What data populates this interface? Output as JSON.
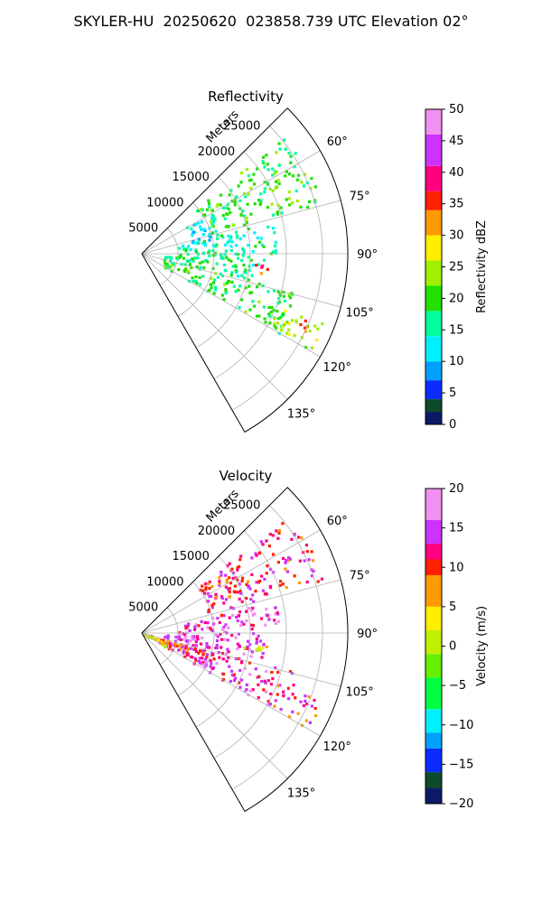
{
  "figure_title": "SKYLER-HU  20250620  023858.739 UTC Elevation 02°",
  "chart_data": [
    {
      "type": "heatmap",
      "projection": "polar-sector",
      "title": "Reflectivity",
      "range_label": "Meters",
      "range_ticks": [
        5000,
        10000,
        15000,
        20000,
        25000
      ],
      "range_tick_labels": [
        "5000",
        "10000",
        "15000",
        "20000",
        "25000"
      ],
      "range_max": 28500,
      "azimuth_range_deg": [
        45,
        150
      ],
      "azimuth_ticks": [
        60,
        75,
        90,
        105,
        120,
        135
      ],
      "azimuth_tick_labels": [
        "60°",
        "75°",
        "90°",
        "105°",
        "120°",
        "135°"
      ],
      "colorbar": {
        "label": "Reflectivity dBZ",
        "vmin": 0,
        "vmax": 50,
        "ticks": [
          0,
          5,
          10,
          15,
          20,
          25,
          30,
          35,
          40,
          45,
          50
        ],
        "tick_labels": [
          "0",
          "5",
          "10",
          "15",
          "20",
          "25",
          "30",
          "35",
          "40",
          "45",
          "50"
        ],
        "stops": [
          {
            "v": 0,
            "color": "#0b1a66"
          },
          {
            "v": 2,
            "color": "#0d4a2a"
          },
          {
            "v": 4,
            "color": "#0a2cff"
          },
          {
            "v": 7,
            "color": "#00a0ff"
          },
          {
            "v": 10,
            "color": "#00f0ff"
          },
          {
            "v": 14,
            "color": "#00ffa0"
          },
          {
            "v": 18,
            "color": "#22e000"
          },
          {
            "v": 22,
            "color": "#a0f000"
          },
          {
            "v": 26,
            "color": "#ffee00"
          },
          {
            "v": 30,
            "color": "#ff9a00"
          },
          {
            "v": 34,
            "color": "#ff2000"
          },
          {
            "v": 37,
            "color": "#ff0080"
          },
          {
            "v": 41,
            "color": "#cc33ff"
          },
          {
            "v": 46,
            "color": "#f090f0"
          },
          {
            "v": 50,
            "color": "#ffe6ff"
          }
        ]
      },
      "echo_regions": [
        {
          "az": [
            50,
            74
          ],
          "r": [
            9500,
            26000
          ],
          "value": 20
        },
        {
          "az": [
            76,
            90
          ],
          "r": [
            5000,
            19000
          ],
          "value": 15
        },
        {
          "az": [
            90,
            104
          ],
          "r": [
            3000,
            17000
          ],
          "value": 17
        },
        {
          "az": [
            104,
            120
          ],
          "r": [
            3000,
            22000
          ],
          "value": 19
        },
        {
          "az": [
            58,
            78
          ],
          "r": [
            7000,
            11000
          ],
          "value": 12
        },
        {
          "az": [
            110,
            120
          ],
          "r": [
            20000,
            27000
          ],
          "value": 24
        },
        {
          "az": [
            95,
            100
          ],
          "r": [
            15000,
            17500
          ],
          "value": 36
        },
        {
          "az": [
            112,
            116
          ],
          "r": [
            22000,
            25000
          ],
          "value": 33
        }
      ]
    },
    {
      "type": "heatmap",
      "projection": "polar-sector",
      "title": "Velocity",
      "range_label": "Meters",
      "range_ticks": [
        5000,
        10000,
        15000,
        20000,
        25000
      ],
      "range_tick_labels": [
        "5000",
        "10000",
        "15000",
        "20000",
        "25000"
      ],
      "range_max": 28500,
      "azimuth_range_deg": [
        45,
        150
      ],
      "azimuth_ticks": [
        60,
        75,
        90,
        105,
        120,
        135
      ],
      "azimuth_tick_labels": [
        "60°",
        "75°",
        "90°",
        "105°",
        "120°",
        "135°"
      ],
      "colorbar": {
        "label": "Velocity (m/s)",
        "vmin": -20,
        "vmax": 20,
        "ticks": [
          -20,
          -15,
          -10,
          -5,
          0,
          5,
          10,
          15,
          20
        ],
        "tick_labels": [
          "−20",
          "−15",
          "−10",
          "−5",
          "0",
          "5",
          "10",
          "15",
          "20"
        ],
        "stops": [
          {
            "v": -20,
            "color": "#0b1a66"
          },
          {
            "v": -18,
            "color": "#0d4a2a"
          },
          {
            "v": -16,
            "color": "#0a2cff"
          },
          {
            "v": -13,
            "color": "#00a0ff"
          },
          {
            "v": -11,
            "color": "#00f0ff"
          },
          {
            "v": -8,
            "color": "#00ff40"
          },
          {
            "v": -4,
            "color": "#66f000"
          },
          {
            "v": -1,
            "color": "#c0f000"
          },
          {
            "v": 2,
            "color": "#ffee00"
          },
          {
            "v": 5,
            "color": "#ff9a00"
          },
          {
            "v": 9,
            "color": "#ff2000"
          },
          {
            "v": 11,
            "color": "#ff0080"
          },
          {
            "v": 13,
            "color": "#cc33ff"
          },
          {
            "v": 16,
            "color": "#f090f0"
          },
          {
            "v": 20,
            "color": "#ffe6ff"
          }
        ]
      },
      "echo_regions": [
        {
          "az": [
            50,
            74
          ],
          "r": [
            9500,
            26000
          ],
          "value": 12
        },
        {
          "az": [
            76,
            90
          ],
          "r": [
            5000,
            19000
          ],
          "value": 14
        },
        {
          "az": [
            90,
            104
          ],
          "r": [
            3000,
            17000
          ],
          "value": 14
        },
        {
          "az": [
            104,
            120
          ],
          "r": [
            3000,
            22000
          ],
          "value": 13
        },
        {
          "az": [
            104,
            116
          ],
          "r": [
            0,
            9000
          ],
          "value": 10
        },
        {
          "az": [
            110,
            120
          ],
          "r": [
            20000,
            27000
          ],
          "value": 11
        },
        {
          "az": [
            108,
            122
          ],
          "r": [
            0,
            3500
          ],
          "value": 3
        },
        {
          "az": [
            95,
            100
          ],
          "r": [
            14000,
            17500
          ],
          "value": 2
        }
      ]
    }
  ]
}
